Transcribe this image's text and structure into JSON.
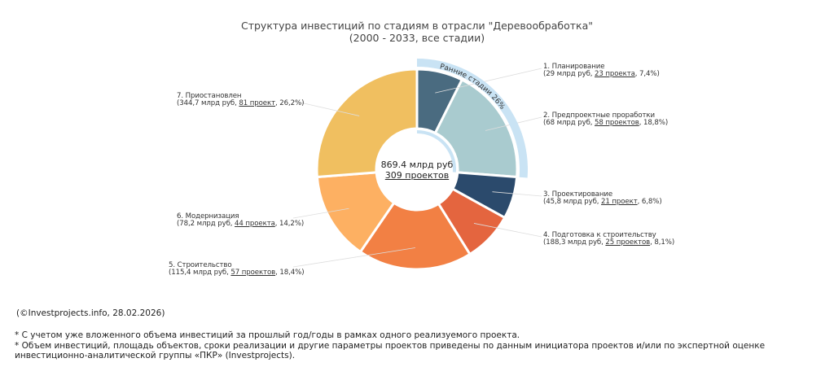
{
  "title": {
    "line1": "Структура инвестиций по стадиям в отрасли \"Деревообработка\"",
    "line2": "(2000 - 2033, все стадии)"
  },
  "center": {
    "total": "869.4 млрд руб",
    "projects": "309 проектов"
  },
  "early_stage_arc": {
    "label": "Ранние стадии 26%",
    "color": "#c9e3f4"
  },
  "labels": [
    {
      "name": "1. Планирование",
      "pre": "(29 млрд руб, ",
      "proj": "23 проекта",
      "post": ", 7,4%)"
    },
    {
      "name": "2. Предпроектные проработки",
      "pre": "(68 млрд руб, ",
      "proj": "58 проектов",
      "post": ", 18,8%)"
    },
    {
      "name": "3. Проектирование",
      "pre": "(45,8 млрд руб, ",
      "proj": "21 проект",
      "post": ", 6,8%)"
    },
    {
      "name": "4. Подготовка к строительству",
      "pre": "(188,3 млрд руб, ",
      "proj": "25 проектов",
      "post": ", 8,1%)"
    },
    {
      "name": "5. Строительство",
      "pre": "(115,4 млрд руб, ",
      "proj": "57 проектов",
      "post": ", 18,4%)"
    },
    {
      "name": "6. Модернизация",
      "pre": "(78,2 млрд руб, ",
      "proj": "44 проекта",
      "post": ", 14,2%)"
    },
    {
      "name": "7. Приостановлен",
      "pre": "(344,7 млрд руб, ",
      "proj": "81 проект",
      "post": ", 26,2%)"
    }
  ],
  "footer": {
    "copyright": "(©Investprojects.info, 28.02.2026)",
    "note1": "* С учетом уже вложенного объема инвестиций за прошлый год/годы в рамках одного реализуемого проекта.",
    "note2": "* Объем инвестиций, площадь объектов, сроки реализации и другие параметры проектов приведены по данным инициатора проектов и/или по экспертной оценке",
    "note3": "инвестиционно-аналитической группы «ПКР» (Investprojects)."
  },
  "chart_data": {
    "type": "pie",
    "subtype": "donut",
    "title": "Структура инвестиций по стадиям в отрасли \"Деревообработка\" (2000 - 2033, все стадии)",
    "center_label": [
      "869.4 млрд руб",
      "309 проектов"
    ],
    "categories": [
      "1. Планирование",
      "2. Предпроектные проработки",
      "3. Проектирование",
      "4. Подготовка к строительству",
      "5. Строительство",
      "6. Модернизация",
      "7. Приостановлен"
    ],
    "values_bln_rub": [
      29,
      68,
      45.8,
      188.3,
      115.4,
      78.2,
      344.7
    ],
    "projects": [
      23,
      58,
      21,
      25,
      57,
      44,
      81
    ],
    "percent": [
      7.4,
      18.8,
      6.8,
      8.1,
      18.4,
      14.2,
      26.2
    ],
    "colors": [
      "#4a6b80",
      "#a9cbcf",
      "#2b4a6c",
      "#e4653f",
      "#f28044",
      "#fdb062",
      "#f0bf60"
    ],
    "group_annotation": {
      "label": "Ранние стадии 26%",
      "covers": [
        0,
        1
      ],
      "percent": 26
    },
    "legend": "none (external callout labels)"
  }
}
